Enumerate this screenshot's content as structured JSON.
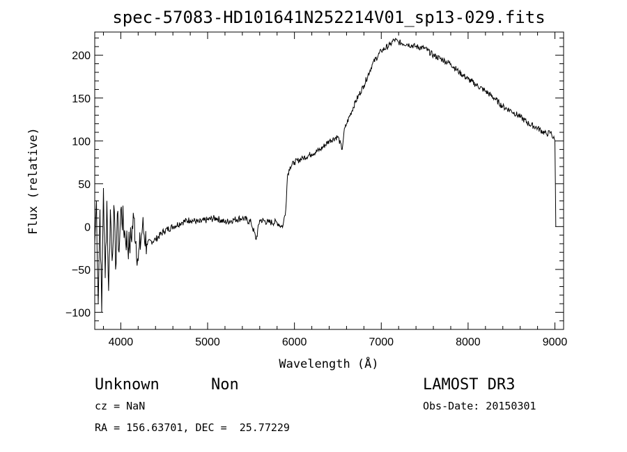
{
  "chart_data": {
    "type": "line",
    "title": "spec-57083-HD101641N252214V01_sp13-029.fits",
    "xlabel": "Wavelength (Å)",
    "ylabel": "Flux (relative)",
    "xlim": [
      3700,
      9100
    ],
    "ylim": [
      -120,
      227
    ],
    "x_ticks": [
      4000,
      5000,
      6000,
      7000,
      8000,
      9000
    ],
    "y_ticks": [
      -100,
      -50,
      0,
      50,
      100,
      150,
      200
    ],
    "x_tick_labels": [
      "4000",
      "5000",
      "6000",
      "7000",
      "8000",
      "9000"
    ],
    "y_tick_labels": [
      "−100",
      "−50",
      "0",
      "50",
      "100",
      "150",
      "200"
    ],
    "grid": false,
    "series": [
      {
        "color": "#000000",
        "x": [
          3700,
          3720,
          3740,
          3760,
          3780,
          3800,
          3820,
          3840,
          3860,
          3880,
          3900,
          3920,
          3940,
          3960,
          3980,
          4000,
          4050,
          4100,
          4150,
          4200,
          4250,
          4300,
          4400,
          4500,
          4600,
          4700,
          4800,
          4900,
          5000,
          5100,
          5200,
          5300,
          5400,
          5500,
          5560,
          5600,
          5700,
          5800,
          5850,
          5870,
          5900,
          5920,
          5950,
          6000,
          6100,
          6200,
          6300,
          6400,
          6500,
          6550,
          6570,
          6600,
          6700,
          6800,
          6900,
          7000,
          7100,
          7150,
          7200,
          7300,
          7400,
          7500,
          7600,
          7700,
          7800,
          7900,
          8000,
          8100,
          8200,
          8300,
          8400,
          8500,
          8600,
          8700,
          8800,
          8900,
          8950,
          9000,
          9010
        ],
        "y": [
          -20,
          30,
          -90,
          20,
          -100,
          45,
          -60,
          30,
          -75,
          20,
          -40,
          25,
          -50,
          15,
          -30,
          20,
          -10,
          -25,
          10,
          -40,
          0,
          -20,
          -15,
          -5,
          0,
          5,
          8,
          5,
          8,
          10,
          5,
          8,
          10,
          5,
          -15,
          8,
          5,
          5,
          0,
          2,
          20,
          60,
          70,
          75,
          80,
          85,
          90,
          100,
          105,
          90,
          110,
          120,
          145,
          165,
          190,
          205,
          212,
          218,
          215,
          213,
          210,
          208,
          200,
          195,
          190,
          180,
          172,
          165,
          158,
          150,
          140,
          135,
          128,
          120,
          115,
          108,
          110,
          100,
          0
        ]
      }
    ]
  },
  "info": {
    "object_name": "Unknown",
    "object_type": "Non",
    "survey": "LAMOST DR3",
    "cz": "cz = NaN",
    "obs_date": "Obs-Date: 20150301",
    "coords": "RA = 156.63701, DEC =  25.77229"
  }
}
